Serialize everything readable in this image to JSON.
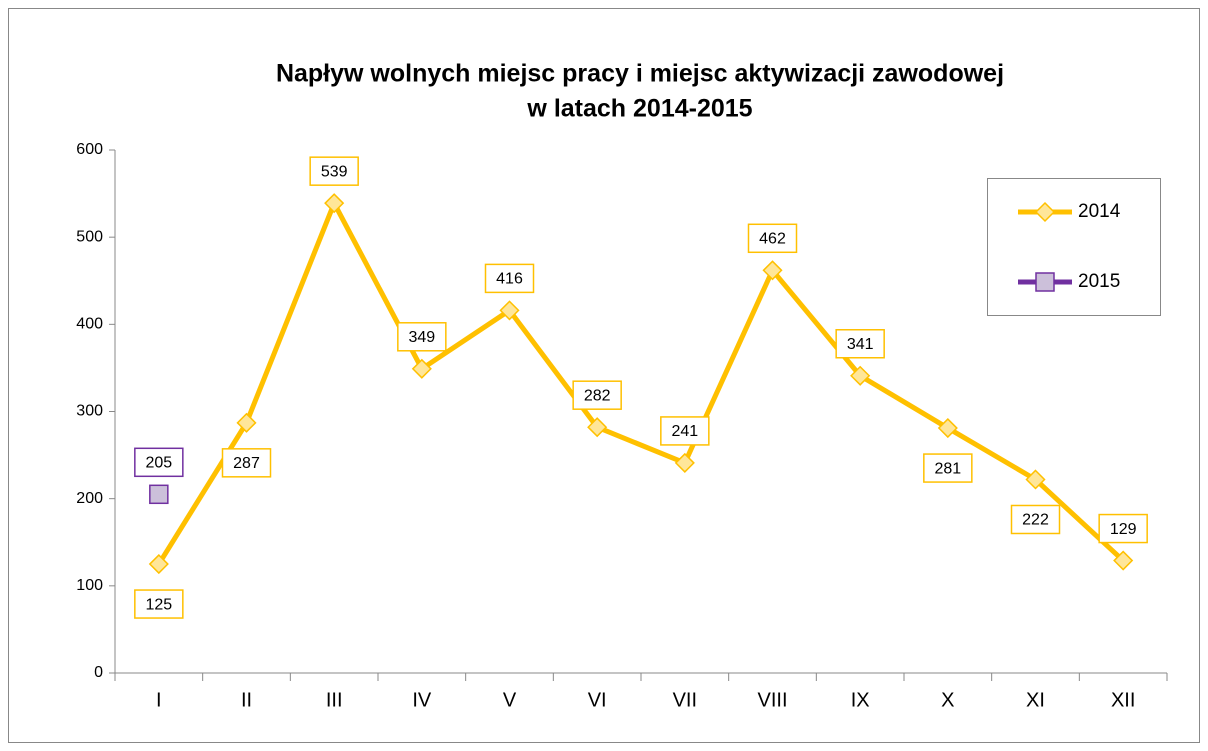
{
  "chart_data": {
    "type": "line",
    "title": [
      "Napływ wolnych miejsc pracy i miejsc aktywizacji zawodowej",
      "w latach 2014-2015"
    ],
    "categories": [
      "I",
      "II",
      "III",
      "IV",
      "V",
      "VI",
      "VII",
      "VIII",
      "IX",
      "X",
      "XI",
      "XII"
    ],
    "series": [
      {
        "name": "2014",
        "color": "#FFC000",
        "marker": "diamond",
        "values": [
          125,
          287,
          539,
          349,
          416,
          282,
          241,
          462,
          341,
          281,
          222,
          129
        ]
      },
      {
        "name": "2015",
        "color": "#7030A0",
        "marker": "square",
        "values": [
          205,
          null,
          null,
          null,
          null,
          null,
          null,
          null,
          null,
          null,
          null,
          null
        ]
      }
    ],
    "ylim": [
      0,
      600
    ],
    "yticks": [
      0,
      100,
      200,
      300,
      400,
      500,
      600
    ],
    "grid": false,
    "legend": "upper right"
  }
}
